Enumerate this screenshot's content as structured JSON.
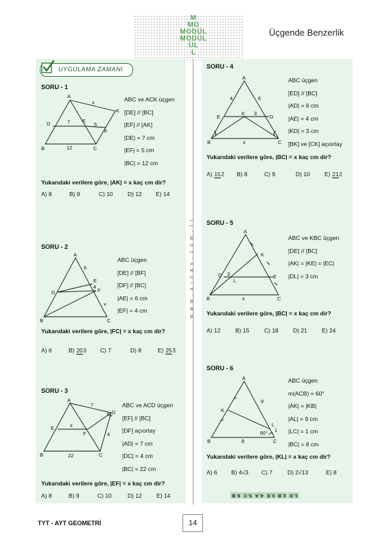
{
  "header": {
    "title": "Üçgende Benzerlik",
    "logo_lines": [
      "M",
      "MO",
      "MODÜL",
      "MODÜL",
      "ÜL",
      "L"
    ]
  },
  "badge": {
    "label": "UYGULAMA ZAMANI"
  },
  "side_url": "w w w . s i n a v . c o m . t r",
  "q1": {
    "title": "SORU - 1",
    "given": [
      "ABC ve ACK üçgen",
      "[DE] // [BC]",
      "[EF] // [AK]",
      "|DE| = 7 cm",
      "|EF| = 5 cm",
      "|BC| = 12 cm"
    ],
    "fig": {
      "A": "A",
      "K": "K",
      "D": "D",
      "E": "E",
      "F": "F",
      "B": "B",
      "C": "C",
      "x": "x",
      "n7": "7",
      "n5": "5",
      "n12": "12"
    },
    "prompt": "Yukarıdaki verilere göre, |AK| = x kaç cm dir?",
    "options": [
      "A) 8",
      "B) 9",
      "C) 10",
      "D) 12",
      "E) 14"
    ]
  },
  "q2": {
    "title": "SORU - 2",
    "given": [
      "ABC üçgen",
      "[DE] // [BF]",
      "[DF] // [BC]",
      "|AE| = 6 cm",
      "|EF| = 4 cm"
    ],
    "fig": {
      "A": "A",
      "E": "E",
      "D": "D",
      "F": "F",
      "B": "B",
      "C": "C",
      "x": "x",
      "n6": "6",
      "n4": "4"
    },
    "prompt": "Yukarıdaki verilere göre, |FC| = x kaç cm dir?",
    "options": {
      "a": "A) 6",
      "b": "B)",
      "b_num": "20",
      "b_den": "3",
      "c": "C) 7",
      "d": "D) 8",
      "e": "E)",
      "e_num": "25",
      "e_den": "3"
    }
  },
  "q3": {
    "title": "SORU - 3",
    "given": [
      "ABC ve ACD üçgen",
      "[EF] // [BC]",
      "[DF] açıortay",
      "|AD| = 7 cm",
      "|DC| = 4 cm",
      "|BC| = 22 cm"
    ],
    "fig": {
      "A": "A",
      "D": "D",
      "E": "E",
      "F": "F",
      "B": "B",
      "C": "C",
      "x": "x",
      "n7": "7",
      "n4": "4",
      "n22": "22"
    },
    "prompt": "Yukarıdaki verilere göre, |EF| = x kaç cm dir?",
    "options": [
      "A) 8",
      "B) 9",
      "C) 10",
      "D) 12",
      "E) 14"
    ]
  },
  "q4": {
    "title": "SORU - 4",
    "given": [
      "ABC üçgen",
      "[ED] // [BC]",
      "|AD| = 6 cm",
      "|AE| = 4 cm",
      "|KD| = 3 cm",
      "[BK] ve [CK] açıortay"
    ],
    "fig": {
      "A": "A",
      "E": "E",
      "K": "K",
      "D": "D",
      "B": "B",
      "C": "C",
      "x": "x",
      "n4": "4",
      "n6": "6",
      "n3": "3"
    },
    "prompt": "Yukarıdaki verilere göre, |BC| = x kaç cm dir?",
    "options": {
      "a": "A)",
      "a_num": "15",
      "a_den": "2",
      "b": "B) 8",
      "c": "C) 9",
      "d": "D) 10",
      "e": "E)",
      "e_num": "21",
      "e_den": "2"
    }
  },
  "q5": {
    "title": "SORU - 5",
    "given": [
      "ABC ve KBC üçgen",
      "[DE] // [BC]",
      "|AK| = |KE| = |EC|",
      "|DL| = 3 cm"
    ],
    "fig": {
      "A": "A",
      "K": "K",
      "D": "D",
      "L": "L",
      "E": "E",
      "B": "B",
      "C": "C",
      "x": "x",
      "n3": "3"
    },
    "prompt": "Yukarıdaki verilere göre, |BC| = x kaç cm dir?",
    "options": [
      "A) 12",
      "B) 15",
      "C) 18",
      "D) 21",
      "E) 24"
    ]
  },
  "q6": {
    "title": "SORU - 6",
    "given": [
      "ABC üçgen",
      "m(ACB) = 60°",
      "|AK| = |KB|",
      "|AL| = 9 cm",
      "|LC| = 1 cm",
      "|BC| = 8 cm"
    ],
    "fig": {
      "A": "A",
      "K": "K",
      "L": "L",
      "B": "B",
      "C": "C",
      "n9": "9",
      "n1": "1",
      "n8": "8",
      "ang": "60°"
    },
    "prompt": "Yukarıdaki verilere göre, |KL| = x kaç cm dir?",
    "options": {
      "a": "A) 6",
      "b": "B) 4√3",
      "c": "C) 7",
      "d": "D) 2√13",
      "e": "E) 8"
    }
  },
  "answer_key": [
    "1. D",
    "2. B",
    "3. E",
    "4. A",
    "5. C",
    "6. B"
  ],
  "footer": {
    "left": "TYT - AYT GEOMETRİ",
    "page": "14"
  }
}
